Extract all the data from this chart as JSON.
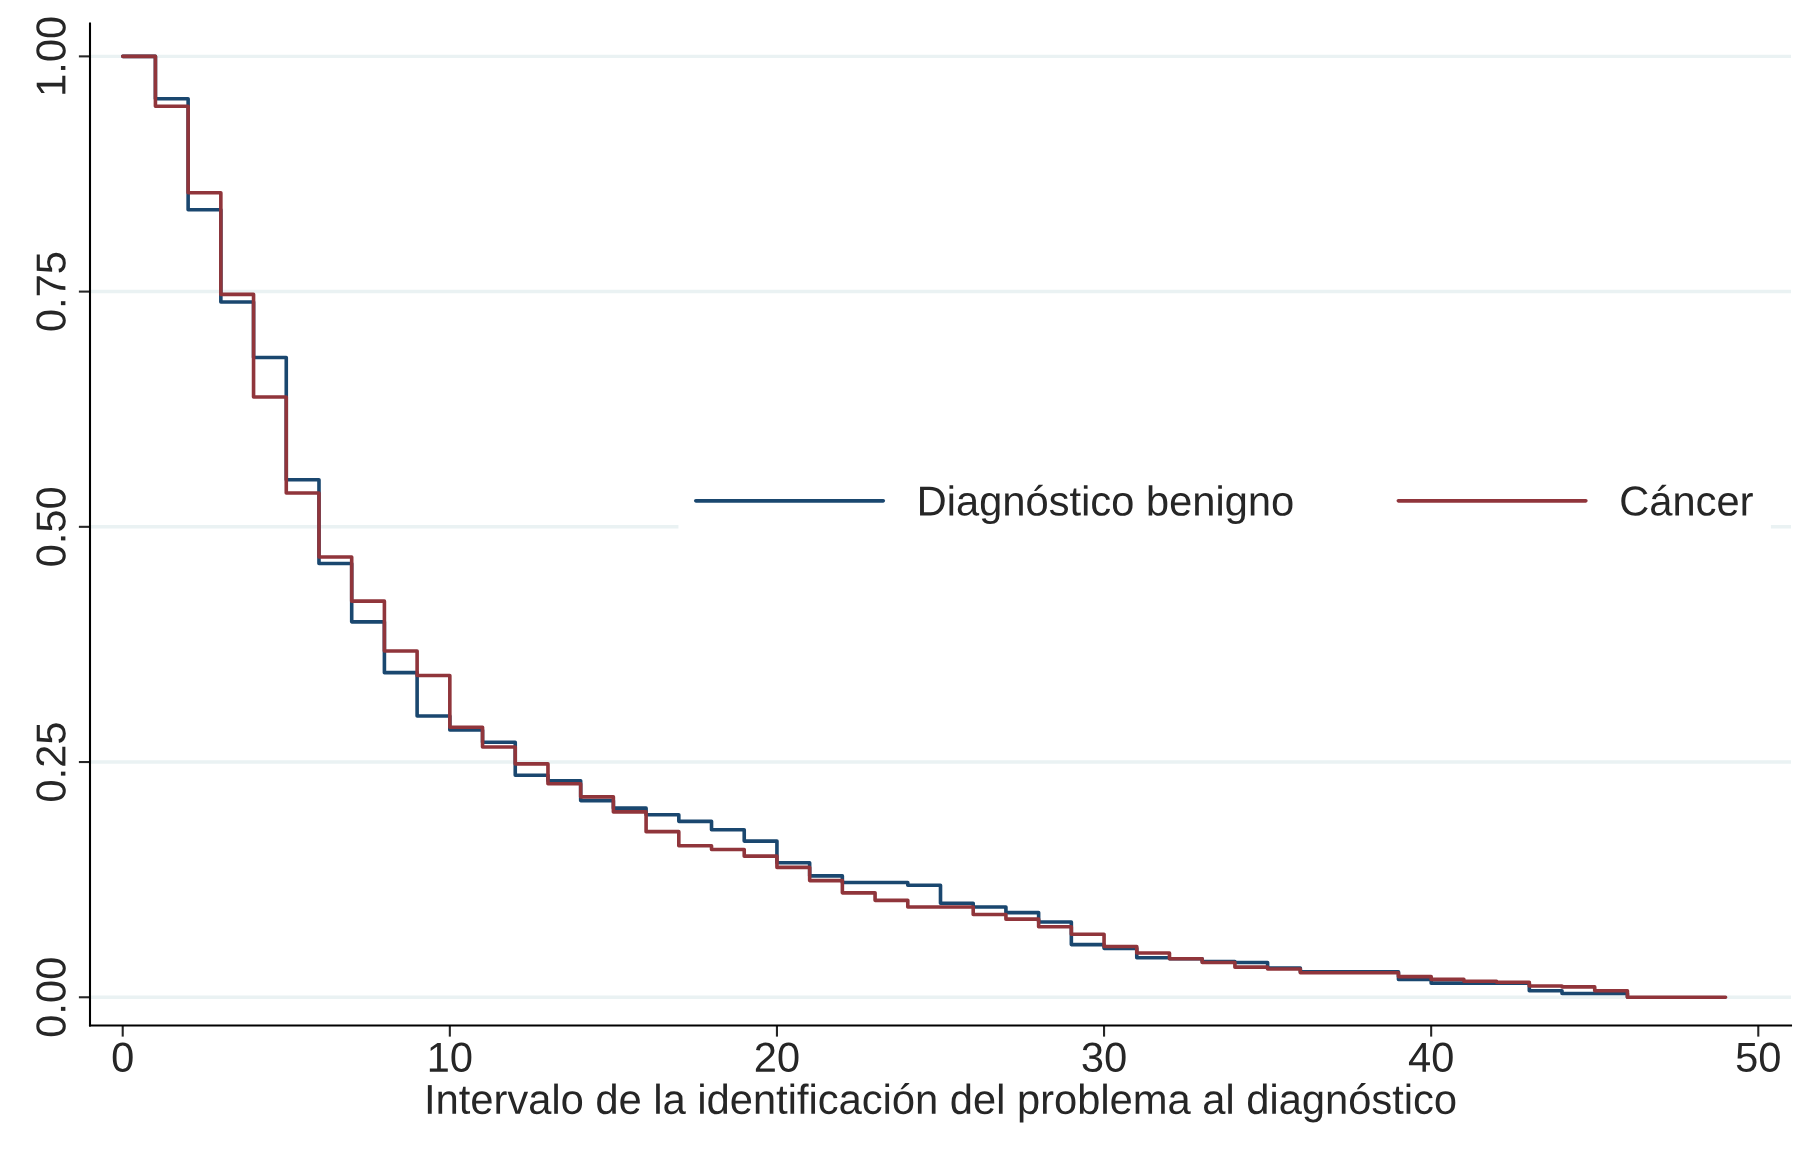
{
  "chart_data": {
    "type": "step",
    "xlabel": "Intervalo de la identificación del problema al diagnóstico",
    "series": [
      {
        "name": "Diagnóstico benigno",
        "color": "#1a476f",
        "x": [
          0,
          1,
          2,
          3,
          4,
          5,
          6,
          7,
          8,
          9,
          10,
          11,
          12,
          13,
          14,
          15,
          16,
          17,
          18,
          19,
          20,
          21,
          22,
          23,
          24,
          25,
          26,
          27,
          28,
          29,
          30,
          31,
          32,
          33,
          34,
          35,
          36,
          37,
          38,
          39,
          40,
          41,
          42,
          43,
          44,
          45,
          46
        ],
        "values": [
          1.0,
          0.955,
          0.837,
          0.739,
          0.68,
          0.55,
          0.461,
          0.399,
          0.345,
          0.299,
          0.284,
          0.271,
          0.236,
          0.23,
          0.209,
          0.201,
          0.194,
          0.187,
          0.178,
          0.166,
          0.143,
          0.129,
          0.122,
          0.122,
          0.119,
          0.1,
          0.096,
          0.09,
          0.08,
          0.056,
          0.052,
          0.042,
          0.041,
          0.038,
          0.037,
          0.031,
          0.027,
          0.027,
          0.027,
          0.019,
          0.015,
          0.015,
          0.015,
          0.007,
          0.004,
          0.004,
          0.0
        ]
      },
      {
        "name": "Cáncer",
        "color": "#90353b",
        "x": [
          0,
          1,
          2,
          3,
          4,
          5,
          6,
          7,
          8,
          9,
          10,
          11,
          12,
          13,
          14,
          15,
          16,
          17,
          18,
          19,
          20,
          21,
          22,
          23,
          24,
          25,
          26,
          27,
          28,
          29,
          30,
          31,
          32,
          33,
          34,
          35,
          36,
          37,
          38,
          39,
          40,
          41,
          42,
          43,
          44,
          45,
          46,
          47,
          48,
          49
        ],
        "values": [
          1.0,
          0.947,
          0.855,
          0.747,
          0.638,
          0.536,
          0.468,
          0.421,
          0.368,
          0.342,
          0.287,
          0.266,
          0.248,
          0.227,
          0.213,
          0.197,
          0.176,
          0.161,
          0.157,
          0.15,
          0.138,
          0.124,
          0.111,
          0.103,
          0.096,
          0.096,
          0.088,
          0.083,
          0.075,
          0.067,
          0.054,
          0.047,
          0.041,
          0.037,
          0.032,
          0.03,
          0.026,
          0.026,
          0.026,
          0.022,
          0.019,
          0.017,
          0.016,
          0.012,
          0.011,
          0.007,
          0.0,
          0.0,
          0.0,
          0.0
        ]
      }
    ],
    "xlim": [
      -1,
      51
    ],
    "xticks": [
      0,
      10,
      20,
      30,
      40,
      50
    ],
    "ylim": [
      -0.03,
      1.035
    ],
    "yticks": [
      {
        "value": 0,
        "label": "0.00"
      },
      {
        "value": 0.25,
        "label": "0.25"
      },
      {
        "value": 0.5,
        "label": "0.50"
      },
      {
        "value": 0.75,
        "label": "0.75"
      },
      {
        "value": 1,
        "label": "1.00"
      }
    ],
    "grid": "y",
    "legend": "right",
    "line_style": "solid"
  }
}
